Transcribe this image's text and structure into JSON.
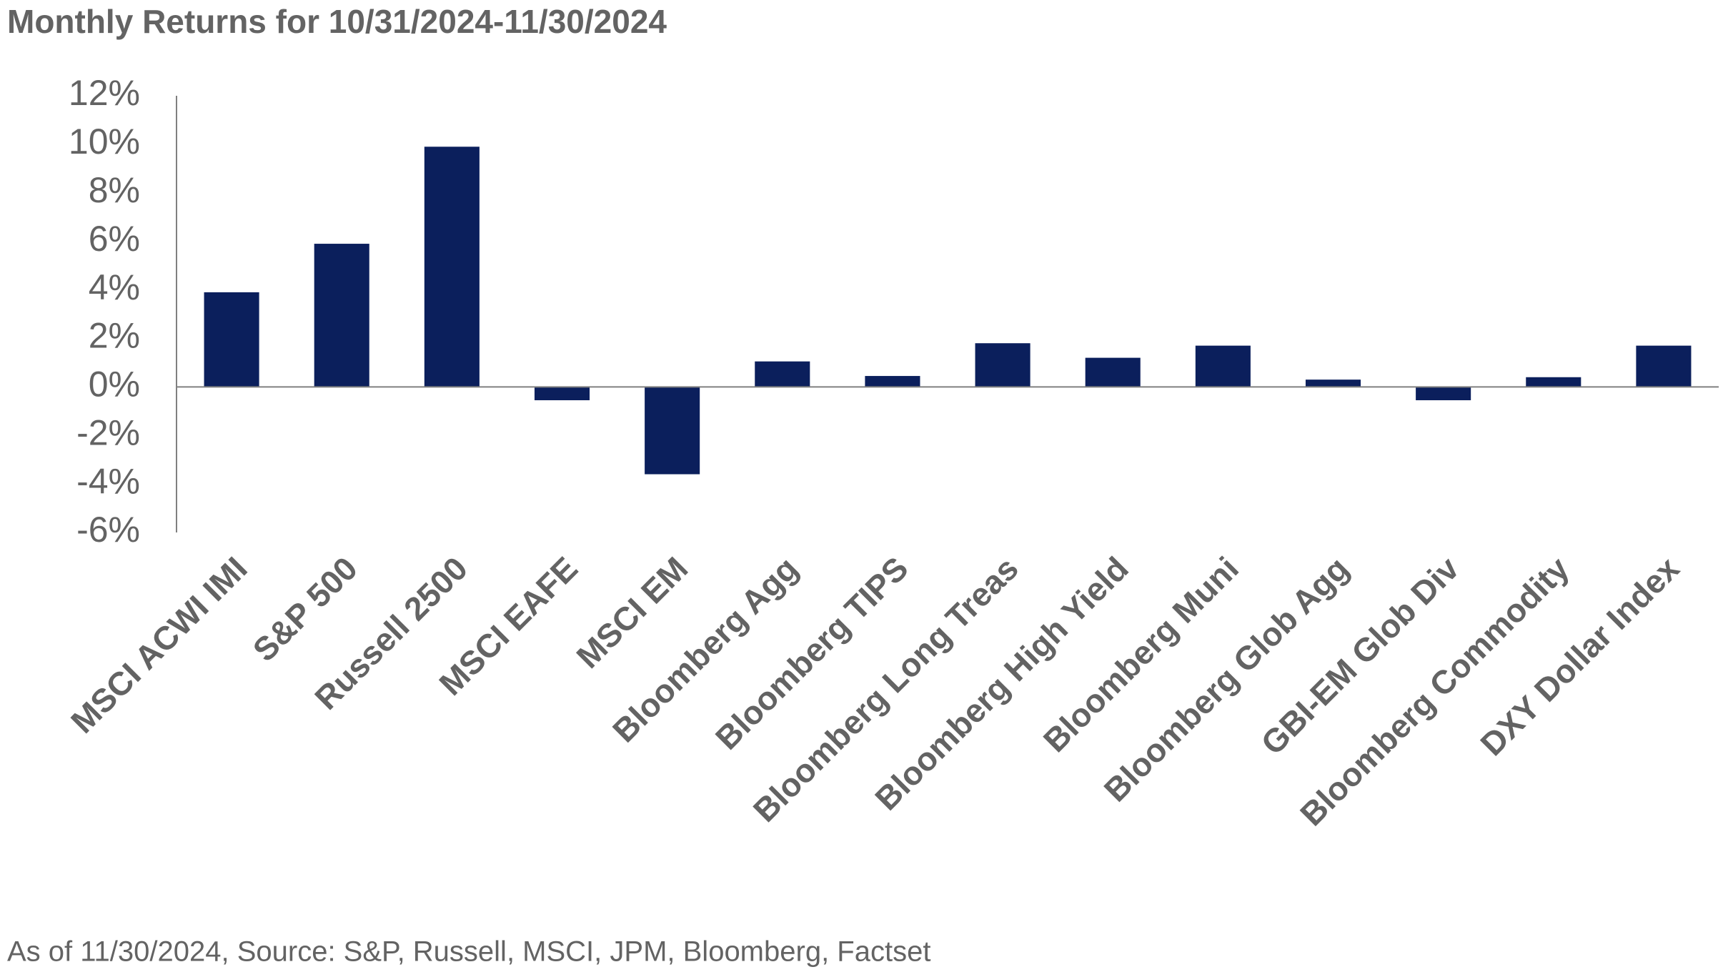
{
  "chart_data": {
    "type": "bar",
    "title": "Monthly Returns for 10/31/2024-11/30/2024",
    "footnote": "As of 11/30/2024, Source: S&P, Russell, MSCI, JPM, Bloomberg, Factset",
    "categories": [
      "MSCI ACWI IMI",
      "S&P 500",
      "Russell 2500",
      "MSCI EAFE",
      "MSCI EM",
      "Bloomberg Agg",
      "Bloomberg TIPS",
      "Bloomberg Long Treas",
      "Bloomberg High Yield",
      "Bloomberg Muni",
      "Bloomberg Glob Agg",
      "GBI-EM Glob Div",
      "Bloomberg Commodity",
      "DXY Dollar Index"
    ],
    "values": [
      3.9,
      5.9,
      9.9,
      -0.55,
      -3.6,
      1.05,
      0.45,
      1.8,
      1.2,
      1.7,
      0.3,
      -0.55,
      0.4,
      1.7
    ],
    "color": "#0b1f5c",
    "ylim": [
      -6,
      12
    ],
    "yticks": [
      {
        "value": -6,
        "label": "-6%"
      },
      {
        "value": -4,
        "label": "-4%"
      },
      {
        "value": -2,
        "label": "-2%"
      },
      {
        "value": 0,
        "label": "0%"
      },
      {
        "value": 2,
        "label": "2%"
      },
      {
        "value": 4,
        "label": "4%"
      },
      {
        "value": 6,
        "label": "6%"
      },
      {
        "value": 8,
        "label": "8%"
      },
      {
        "value": 10,
        "label": "10%"
      },
      {
        "value": 12,
        "label": "12%"
      }
    ],
    "grid": false
  }
}
